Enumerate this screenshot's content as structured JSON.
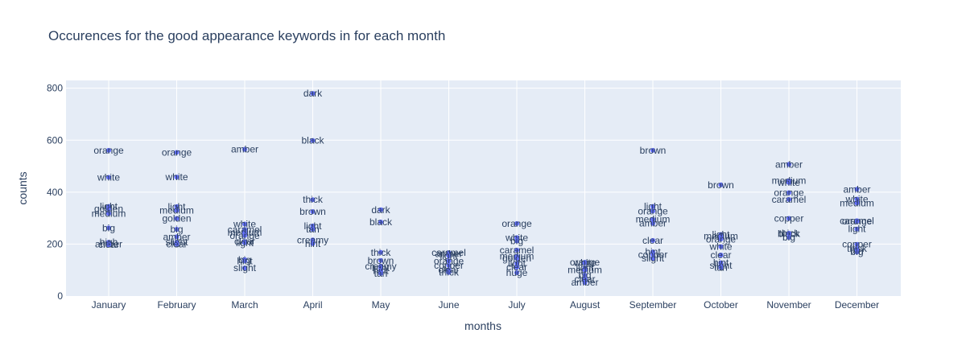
{
  "chart_data": {
    "type": "scatter",
    "title": "Occurences for the good appearance keywords in for each month",
    "xlabel": "months",
    "ylabel": "counts",
    "categories": [
      "January",
      "February",
      "March",
      "April",
      "May",
      "June",
      "July",
      "August",
      "September",
      "October",
      "November",
      "December"
    ],
    "yticks": [
      0,
      200,
      400,
      600,
      800
    ],
    "ylim": [
      0,
      830
    ],
    "grid": true,
    "plot_bg": "#e5ecf6",
    "marker_color": "#636efa",
    "series": [
      {
        "values": [
          {
            "x": "January",
            "y": 561,
            "label": "orange"
          },
          {
            "x": "January",
            "y": 457,
            "label": "white"
          },
          {
            "x": "January",
            "y": 345,
            "label": "light"
          },
          {
            "x": "January",
            "y": 336,
            "label": "golden"
          },
          {
            "x": "January",
            "y": 318,
            "label": "medium"
          },
          {
            "x": "January",
            "y": 262,
            "label": "big"
          },
          {
            "x": "January",
            "y": 207,
            "label": "high"
          },
          {
            "x": "January",
            "y": 200,
            "label": "amber"
          },
          {
            "x": "January",
            "y": 198,
            "label": "clear"
          },
          {
            "x": "February",
            "y": 553,
            "label": "orange"
          },
          {
            "x": "February",
            "y": 458,
            "label": "white"
          },
          {
            "x": "February",
            "y": 344,
            "label": "light"
          },
          {
            "x": "February",
            "y": 330,
            "label": "medium"
          },
          {
            "x": "February",
            "y": 299,
            "label": "golden"
          },
          {
            "x": "February",
            "y": 257,
            "label": "big"
          },
          {
            "x": "February",
            "y": 228,
            "label": "amber"
          },
          {
            "x": "February",
            "y": 207,
            "label": "slight"
          },
          {
            "x": "February",
            "y": 200,
            "label": "clear"
          },
          {
            "x": "March",
            "y": 565,
            "label": "amber"
          },
          {
            "x": "March",
            "y": 277,
            "label": "white"
          },
          {
            "x": "March",
            "y": 256,
            "label": "caramel"
          },
          {
            "x": "March",
            "y": 244,
            "label": "medium"
          },
          {
            "x": "March",
            "y": 233,
            "label": "orange"
          },
          {
            "x": "March",
            "y": 210,
            "label": "clear"
          },
          {
            "x": "March",
            "y": 205,
            "label": "light"
          },
          {
            "x": "March",
            "y": 140,
            "label": "big"
          },
          {
            "x": "March",
            "y": 135,
            "label": "hint"
          },
          {
            "x": "March",
            "y": 108,
            "label": "slight"
          },
          {
            "x": "April",
            "y": 780,
            "label": "dark"
          },
          {
            "x": "April",
            "y": 599,
            "label": "black"
          },
          {
            "x": "April",
            "y": 371,
            "label": "thick"
          },
          {
            "x": "April",
            "y": 325,
            "label": "brown"
          },
          {
            "x": "April",
            "y": 270,
            "label": "light"
          },
          {
            "x": "April",
            "y": 257,
            "label": "tan"
          },
          {
            "x": "April",
            "y": 216,
            "label": "creamy"
          },
          {
            "x": "April",
            "y": 202,
            "label": "hint"
          },
          {
            "x": "May",
            "y": 332,
            "label": "dark"
          },
          {
            "x": "May",
            "y": 285,
            "label": "black"
          },
          {
            "x": "May",
            "y": 168,
            "label": "thick"
          },
          {
            "x": "May",
            "y": 137,
            "label": "brown"
          },
          {
            "x": "May",
            "y": 115,
            "label": "creamy"
          },
          {
            "x": "May",
            "y": 108,
            "label": "light"
          },
          {
            "x": "May",
            "y": 98,
            "label": "hint"
          },
          {
            "x": "May",
            "y": 87,
            "label": "tan"
          },
          {
            "x": "June",
            "y": 167,
            "label": "caramel"
          },
          {
            "x": "June",
            "y": 162,
            "label": "amber"
          },
          {
            "x": "June",
            "y": 155,
            "label": "light"
          },
          {
            "x": "June",
            "y": 135,
            "label": "orange"
          },
          {
            "x": "June",
            "y": 118,
            "label": "copper"
          },
          {
            "x": "June",
            "y": 100,
            "label": "clear"
          },
          {
            "x": "June",
            "y": 91,
            "label": "thick"
          },
          {
            "x": "July",
            "y": 279,
            "label": "orange"
          },
          {
            "x": "July",
            "y": 225,
            "label": "white"
          },
          {
            "x": "July",
            "y": 212,
            "label": "big"
          },
          {
            "x": "July",
            "y": 177,
            "label": "caramel"
          },
          {
            "x": "July",
            "y": 153,
            "label": "medium"
          },
          {
            "x": "July",
            "y": 145,
            "label": "golden"
          },
          {
            "x": "July",
            "y": 125,
            "label": "light"
          },
          {
            "x": "July",
            "y": 111,
            "label": "clear"
          },
          {
            "x": "July",
            "y": 90,
            "label": "huge"
          },
          {
            "x": "August",
            "y": 130,
            "label": "orange"
          },
          {
            "x": "August",
            "y": 128,
            "label": "white"
          },
          {
            "x": "August",
            "y": 108,
            "label": "light"
          },
          {
            "x": "August",
            "y": 100,
            "label": "medium"
          },
          {
            "x": "August",
            "y": 80,
            "label": "big"
          },
          {
            "x": "August",
            "y": 65,
            "label": "clear"
          },
          {
            "x": "August",
            "y": 52,
            "label": "amber"
          },
          {
            "x": "September",
            "y": 561,
            "label": "brown"
          },
          {
            "x": "September",
            "y": 345,
            "label": "light"
          },
          {
            "x": "September",
            "y": 327,
            "label": "orange"
          },
          {
            "x": "September",
            "y": 295,
            "label": "medium"
          },
          {
            "x": "September",
            "y": 280,
            "label": "amber"
          },
          {
            "x": "September",
            "y": 214,
            "label": "clear"
          },
          {
            "x": "September",
            "y": 170,
            "label": "hint"
          },
          {
            "x": "September",
            "y": 160,
            "label": "copper"
          },
          {
            "x": "September",
            "y": 145,
            "label": "slight"
          },
          {
            "x": "October",
            "y": 428,
            "label": "brown"
          },
          {
            "x": "October",
            "y": 237,
            "label": "light"
          },
          {
            "x": "October",
            "y": 230,
            "label": "medium"
          },
          {
            "x": "October",
            "y": 219,
            "label": "orange"
          },
          {
            "x": "October",
            "y": 190,
            "label": "white"
          },
          {
            "x": "October",
            "y": 158,
            "label": "clear"
          },
          {
            "x": "October",
            "y": 128,
            "label": "hint"
          },
          {
            "x": "October",
            "y": 117,
            "label": "slight"
          },
          {
            "x": "October",
            "y": 110,
            "label": "tan"
          },
          {
            "x": "November",
            "y": 507,
            "label": "amber"
          },
          {
            "x": "November",
            "y": 444,
            "label": "medium"
          },
          {
            "x": "November",
            "y": 437,
            "label": "white"
          },
          {
            "x": "November",
            "y": 398,
            "label": "orange"
          },
          {
            "x": "November",
            "y": 372,
            "label": "caramel"
          },
          {
            "x": "November",
            "y": 299,
            "label": "copper"
          },
          {
            "x": "November",
            "y": 242,
            "label": "thick"
          },
          {
            "x": "November",
            "y": 240,
            "label": "black"
          },
          {
            "x": "November",
            "y": 226,
            "label": "big"
          },
          {
            "x": "December",
            "y": 411,
            "label": "amber"
          },
          {
            "x": "December",
            "y": 373,
            "label": "white"
          },
          {
            "x": "December",
            "y": 358,
            "label": "medium"
          },
          {
            "x": "December",
            "y": 290,
            "label": "caramel"
          },
          {
            "x": "December",
            "y": 288,
            "label": "orange"
          },
          {
            "x": "December",
            "y": 258,
            "label": "light"
          },
          {
            "x": "December",
            "y": 199,
            "label": "copper"
          },
          {
            "x": "December",
            "y": 182,
            "label": "thick"
          },
          {
            "x": "December",
            "y": 175,
            "label": "tan"
          },
          {
            "x": "December",
            "y": 170,
            "label": "big"
          }
        ]
      }
    ]
  }
}
